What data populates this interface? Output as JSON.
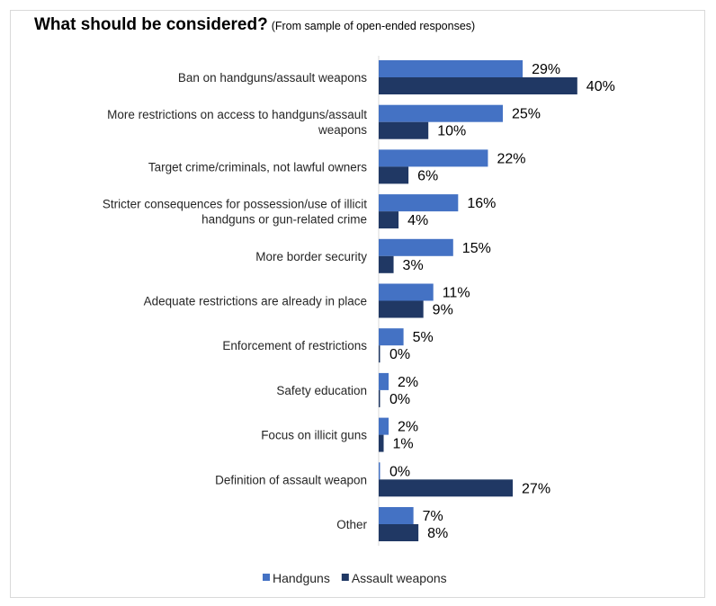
{
  "chart_data": {
    "type": "bar",
    "orientation": "horizontal",
    "title": "What should be considered?",
    "subtitle": "(From sample of open-ended responses)",
    "categories": [
      [
        "Ban on handguns/assault weapons"
      ],
      [
        "More restrictions on access to handguns/assault",
        "weapons"
      ],
      [
        "Target crime/criminals, not lawful owners"
      ],
      [
        "Stricter consequences for possession/use of illicit",
        "handguns or gun-related crime"
      ],
      [
        "More border security"
      ],
      [
        "Adequate restrictions are already in place"
      ],
      [
        "Enforcement of restrictions"
      ],
      [
        "Safety education"
      ],
      [
        "Focus on illicit guns"
      ],
      [
        "Definition of assault weapon"
      ],
      [
        "Other"
      ]
    ],
    "series": [
      {
        "name": "Handguns",
        "color": "#4472C4",
        "values": [
          29,
          25,
          22,
          16,
          15,
          11,
          5,
          2,
          2,
          0,
          7
        ]
      },
      {
        "name": "Assault weapons",
        "color": "#203864",
        "values": [
          40,
          10,
          6,
          4,
          3,
          9,
          0,
          0,
          1,
          27,
          8
        ]
      }
    ],
    "value_suffix": "%",
    "xlim": [
      0,
      40
    ],
    "grid": false,
    "legend_position": "bottom"
  }
}
